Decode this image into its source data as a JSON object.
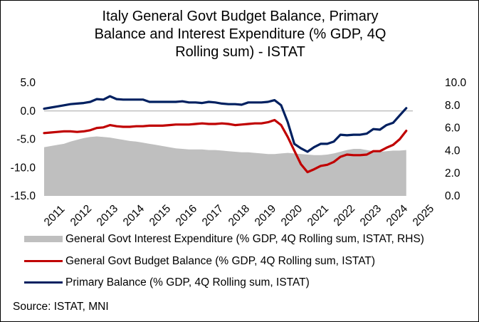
{
  "chart_data": {
    "type": "line",
    "title_lines": [
      "Italy General Govt Budget Balance, Primary",
      "Balance and Interest Expenditure (% GDP, 4Q",
      "Rolling sum) - ISTAT"
    ],
    "x_ticks": [
      "2011",
      "2012",
      "2013",
      "2014",
      "2015",
      "2016",
      "2017",
      "2018",
      "2019",
      "2020",
      "2021",
      "2022",
      "2023",
      "2024",
      "2025"
    ],
    "x_start": 2011.0,
    "x_end": 2025.0,
    "ylim_left": [
      -15,
      5
    ],
    "yticks_left": [
      "5.0",
      "0.0",
      "-5.0",
      "-10.0",
      "-15.0"
    ],
    "ylim_right": [
      0,
      10
    ],
    "yticks_right": [
      "10.0",
      "8.0",
      "6.0",
      "4.0",
      "2.0",
      "0.0"
    ],
    "series": [
      {
        "name": "General Govt Interest Expenditure (% GDP, 4Q Rolling sum, ISTAT, RHS)",
        "type": "area",
        "axis": "right",
        "color": "#bfbfbf",
        "x": [
          2011.0,
          2011.25,
          2011.5,
          2011.75,
          2012.0,
          2012.25,
          2012.5,
          2012.75,
          2013.0,
          2013.25,
          2013.5,
          2013.75,
          2014.0,
          2014.25,
          2014.5,
          2014.75,
          2015.0,
          2015.25,
          2015.5,
          2015.75,
          2016.0,
          2016.25,
          2016.5,
          2016.75,
          2017.0,
          2017.25,
          2017.5,
          2017.75,
          2018.0,
          2018.25,
          2018.5,
          2018.75,
          2019.0,
          2019.25,
          2019.5,
          2019.75,
          2020.0,
          2020.25,
          2020.5,
          2020.75,
          2021.0,
          2021.25,
          2021.5,
          2021.75,
          2022.0,
          2022.25,
          2022.5,
          2022.75,
          2023.0,
          2023.25,
          2023.5,
          2023.75,
          2024.0,
          2024.25,
          2024.5,
          2024.75
        ],
        "values": [
          4.3,
          4.4,
          4.5,
          4.6,
          4.8,
          4.95,
          5.1,
          5.2,
          5.25,
          5.2,
          5.15,
          5.05,
          4.95,
          4.85,
          4.8,
          4.7,
          4.6,
          4.5,
          4.4,
          4.3,
          4.2,
          4.15,
          4.1,
          4.1,
          4.1,
          4.05,
          4.05,
          4.0,
          3.95,
          3.9,
          3.85,
          3.85,
          3.8,
          3.75,
          3.7,
          3.7,
          3.75,
          3.8,
          3.75,
          3.7,
          3.65,
          3.6,
          3.6,
          3.65,
          3.75,
          3.9,
          4.05,
          4.15,
          4.15,
          4.05,
          3.95,
          3.9,
          3.95,
          4.0,
          4.0,
          4.05
        ]
      },
      {
        "name": "General Govt Budget Balance (% GDP, 4Q Rolling sum, ISTAT)",
        "type": "line",
        "axis": "left",
        "color": "#c00000",
        "x": [
          2011.0,
          2011.25,
          2011.5,
          2011.75,
          2012.0,
          2012.25,
          2012.5,
          2012.75,
          2013.0,
          2013.25,
          2013.5,
          2013.75,
          2014.0,
          2014.25,
          2014.5,
          2014.75,
          2015.0,
          2015.25,
          2015.5,
          2015.75,
          2016.0,
          2016.25,
          2016.5,
          2016.75,
          2017.0,
          2017.25,
          2017.5,
          2017.75,
          2018.0,
          2018.25,
          2018.5,
          2018.75,
          2019.0,
          2019.25,
          2019.5,
          2019.75,
          2020.0,
          2020.25,
          2020.5,
          2020.75,
          2021.0,
          2021.25,
          2021.5,
          2021.75,
          2022.0,
          2022.25,
          2022.5,
          2022.75,
          2023.0,
          2023.25,
          2023.5,
          2023.75,
          2024.0,
          2024.25,
          2024.5,
          2024.75
        ],
        "values": [
          -3.9,
          -3.8,
          -3.7,
          -3.6,
          -3.6,
          -3.7,
          -3.6,
          -3.4,
          -3.0,
          -2.9,
          -2.5,
          -2.7,
          -2.8,
          -2.8,
          -2.7,
          -2.7,
          -2.6,
          -2.6,
          -2.6,
          -2.5,
          -2.4,
          -2.4,
          -2.4,
          -2.3,
          -2.2,
          -2.3,
          -2.3,
          -2.2,
          -2.3,
          -2.5,
          -2.4,
          -2.3,
          -2.2,
          -2.2,
          -2.0,
          -1.6,
          -2.5,
          -4.6,
          -7.0,
          -9.4,
          -10.8,
          -10.3,
          -9.7,
          -9.5,
          -9.0,
          -8.1,
          -7.7,
          -7.8,
          -7.8,
          -7.7,
          -7.1,
          -7.1,
          -6.5,
          -6.0,
          -5.0,
          -3.5
        ]
      },
      {
        "name": "Primary Balance (% GDP, 4Q Rolling sum, ISTAT)",
        "type": "line",
        "axis": "left",
        "color": "#002060",
        "x": [
          2011.0,
          2011.25,
          2011.5,
          2011.75,
          2012.0,
          2012.25,
          2012.5,
          2012.75,
          2013.0,
          2013.25,
          2013.5,
          2013.75,
          2014.0,
          2014.25,
          2014.5,
          2014.75,
          2015.0,
          2015.25,
          2015.5,
          2015.75,
          2016.0,
          2016.25,
          2016.5,
          2016.75,
          2017.0,
          2017.25,
          2017.5,
          2017.75,
          2018.0,
          2018.25,
          2018.5,
          2018.75,
          2019.0,
          2019.25,
          2019.5,
          2019.75,
          2020.0,
          2020.25,
          2020.5,
          2020.75,
          2021.0,
          2021.25,
          2021.5,
          2021.75,
          2022.0,
          2022.25,
          2022.5,
          2022.75,
          2023.0,
          2023.25,
          2023.5,
          2023.75,
          2024.0,
          2024.25,
          2024.5,
          2024.75
        ],
        "values": [
          0.4,
          0.6,
          0.8,
          1.0,
          1.2,
          1.3,
          1.4,
          1.6,
          2.1,
          2.0,
          2.6,
          2.1,
          2.0,
          2.0,
          2.0,
          2.0,
          1.6,
          1.6,
          1.6,
          1.6,
          1.6,
          1.7,
          1.5,
          1.5,
          1.4,
          1.6,
          1.5,
          1.3,
          1.2,
          1.2,
          1.1,
          1.5,
          1.5,
          1.5,
          1.6,
          1.9,
          1.0,
          -2.0,
          -5.8,
          -6.6,
          -7.2,
          -6.4,
          -5.8,
          -5.8,
          -5.4,
          -4.2,
          -4.3,
          -4.2,
          -4.2,
          -4.0,
          -3.2,
          -3.3,
          -2.5,
          -2.1,
          -0.8,
          0.5
        ]
      }
    ],
    "legend": [
      {
        "label": "General Govt Interest Expenditure (% GDP, 4Q Rolling sum, ISTAT, RHS)",
        "style": "area",
        "color": "#bfbfbf"
      },
      {
        "label": "General Govt Budget Balance (% GDP, 4Q Rolling sum, ISTAT)",
        "style": "line",
        "color": "#c00000"
      },
      {
        "label": "Primary Balance (% GDP, 4Q Rolling sum, ISTAT)",
        "style": "line",
        "color": "#002060"
      }
    ],
    "source": "Source: ISTAT, MNI"
  }
}
